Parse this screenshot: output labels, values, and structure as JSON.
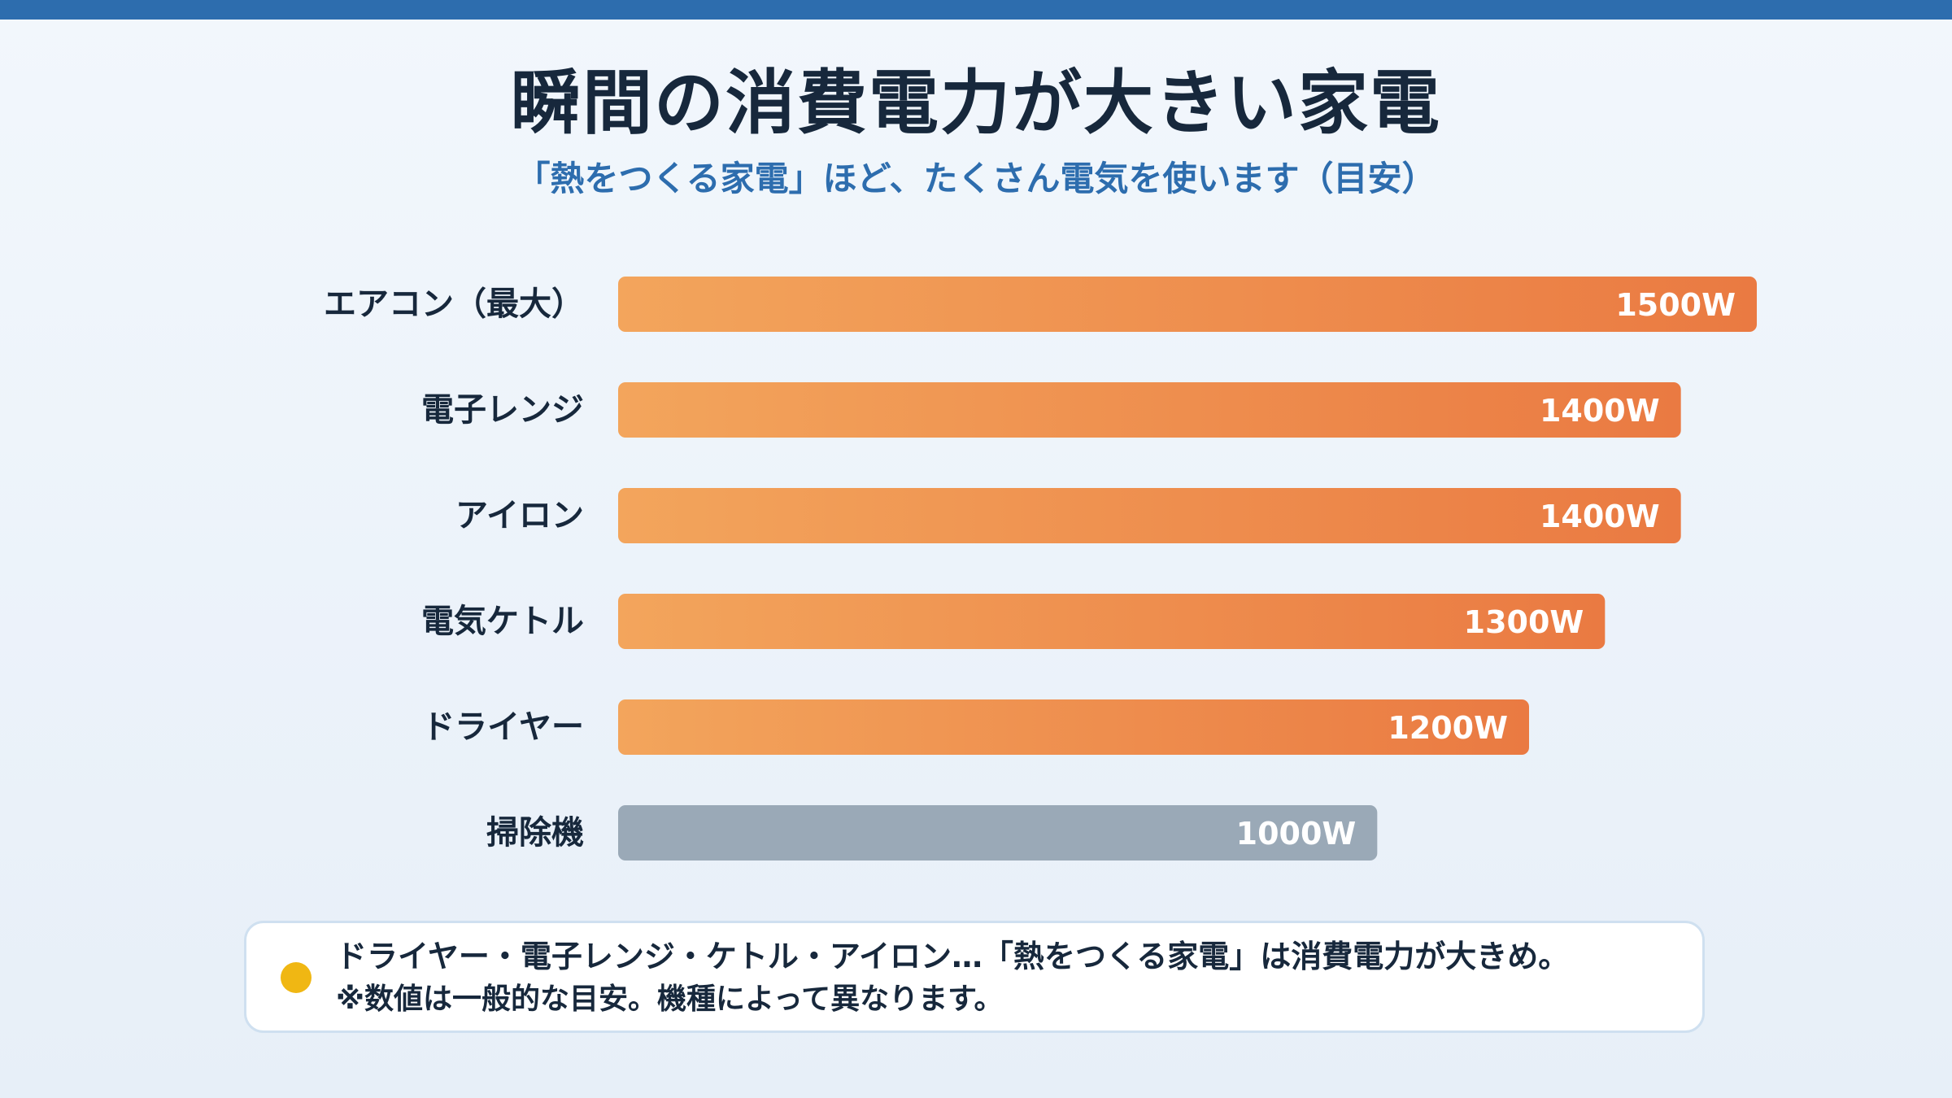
{
  "title": "瞬間の消費電力が大きい家電",
  "subtitle": "「熱をつくる家電」ほど、たくさん電気を使います（目安）",
  "colors": {
    "accent_band": "#2d6dae",
    "bar_highlight_start": "#f3a55c",
    "bar_highlight_end": "#ea7a42",
    "bar_muted": "#9aa9b7",
    "note_dot": "#f0b713"
  },
  "chart_data": {
    "type": "bar",
    "orientation": "horizontal",
    "categories": [
      "エアコン（最大）",
      "電子レンジ",
      "アイロン",
      "電気ケトル",
      "ドライヤー",
      "掃除機"
    ],
    "values": [
      1500,
      1400,
      1400,
      1300,
      1200,
      1000
    ],
    "value_labels": [
      "1500W",
      "1400W",
      "1400W",
      "1300W",
      "1200W",
      "1000W"
    ],
    "unit": "W",
    "highlight": [
      true,
      true,
      true,
      true,
      true,
      false
    ],
    "xlim": [
      0,
      1500
    ],
    "grid": false,
    "legend": "none"
  },
  "note": {
    "line1": "ドライヤー・電子レンジ・ケトル・アイロン…「熱をつくる家電」は消費電力が大きめ。",
    "line2": "※数値は一般的な目安。機種によって異なります。",
    "icon": "yellow-dot-icon"
  }
}
